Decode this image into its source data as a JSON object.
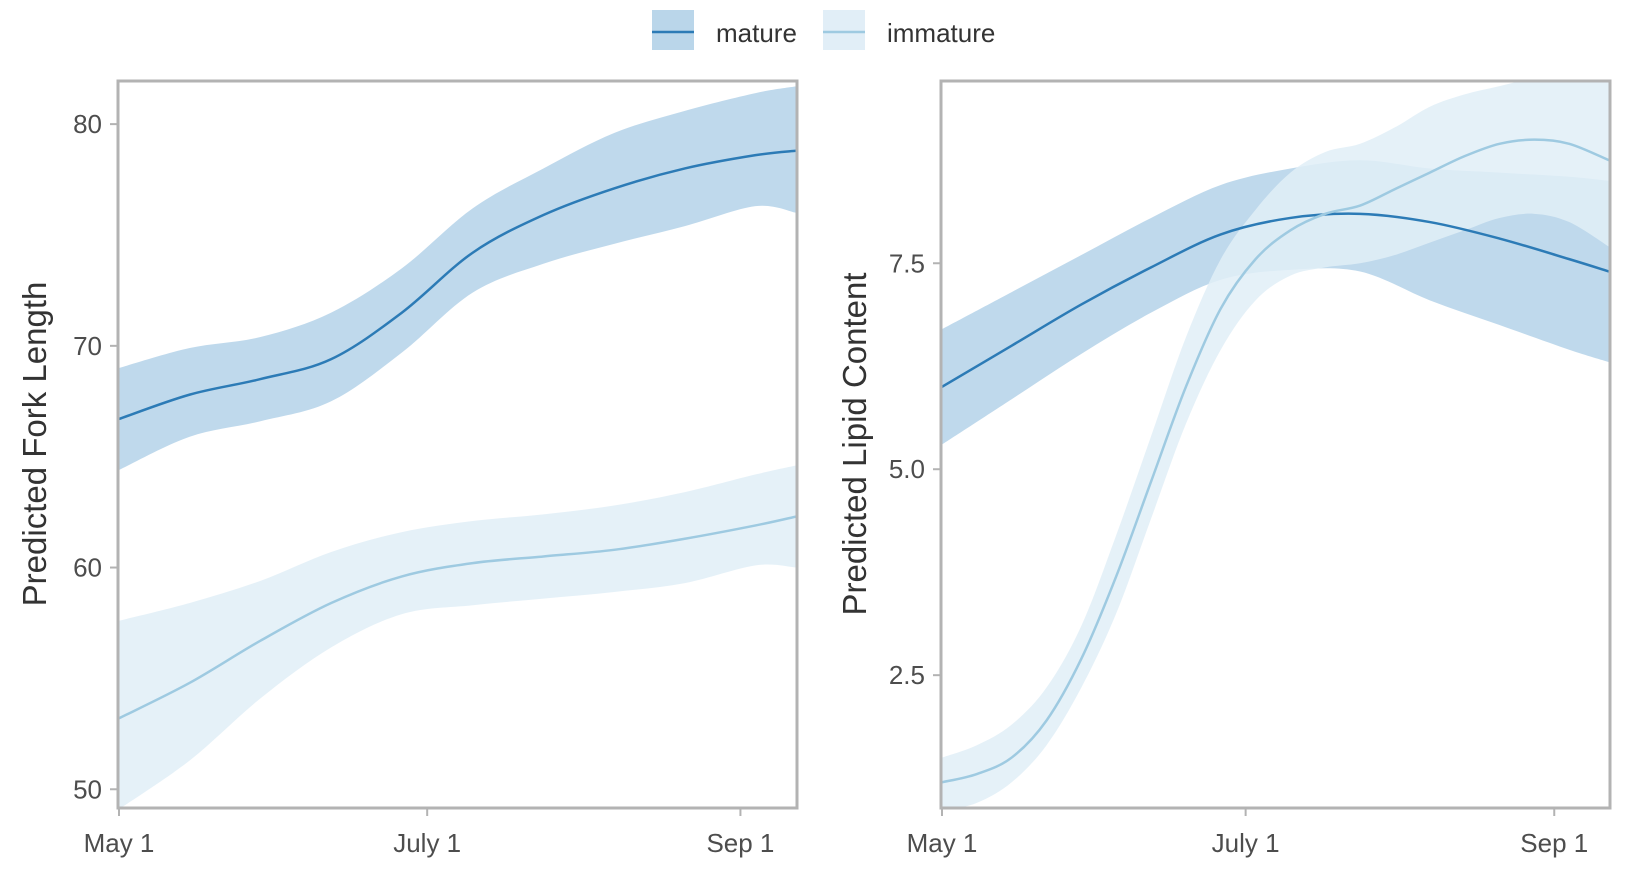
{
  "legend": {
    "position": "top-center",
    "items": [
      {
        "label": "mature",
        "line_color": "#2c7bb6",
        "band_color": "#bad6ea"
      },
      {
        "label": "immature",
        "line_color": "#9ecae1",
        "band_color": "#e1eef7"
      }
    ]
  },
  "colors": {
    "mature_line": "#2c7bb6",
    "mature_band": "#bad6ea",
    "immature_line": "#9ecae1",
    "immature_band": "#e1eef7",
    "panel_border": "#b3b3b3",
    "tick_text": "#4d4d4d",
    "axis_title": "#333333"
  },
  "chart_data": [
    {
      "type": "line",
      "title": "",
      "xlabel": "",
      "ylabel": "Predicted Fork Length",
      "x_axis": {
        "type": "date",
        "range": [
          "2019-05-01",
          "2019-09-12"
        ],
        "ticks": [
          "2019-05-01",
          "2019-07-01",
          "2019-09-01"
        ],
        "tick_labels": [
          "May 1",
          "July 1",
          "Sep 1"
        ]
      },
      "ylim": [
        49.2,
        81.9
      ],
      "y_ticks": [
        50,
        60,
        70,
        80
      ],
      "y_tick_labels": [
        "50",
        "60",
        "70",
        "80"
      ],
      "grid": false,
      "series": [
        {
          "name": "mature",
          "x": [
            "2019-05-01",
            "2019-05-15",
            "2019-05-29",
            "2019-06-12",
            "2019-06-26",
            "2019-07-10",
            "2019-07-24",
            "2019-08-07",
            "2019-08-21",
            "2019-09-04",
            "2019-09-12"
          ],
          "y": [
            66.7,
            67.8,
            68.5,
            69.4,
            71.5,
            74.2,
            75.9,
            77.1,
            78.0,
            78.6,
            78.8
          ],
          "lower": [
            64.4,
            65.9,
            66.6,
            67.5,
            69.7,
            72.4,
            73.7,
            74.6,
            75.4,
            76.3,
            76.0
          ],
          "upper": [
            69.0,
            69.9,
            70.4,
            71.5,
            73.5,
            76.2,
            78.0,
            79.6,
            80.6,
            81.4,
            81.7
          ]
        },
        {
          "name": "immature",
          "x": [
            "2019-05-01",
            "2019-05-15",
            "2019-05-29",
            "2019-06-12",
            "2019-06-26",
            "2019-07-10",
            "2019-07-24",
            "2019-08-07",
            "2019-08-21",
            "2019-09-04",
            "2019-09-12"
          ],
          "y": [
            53.2,
            54.8,
            56.7,
            58.4,
            59.6,
            60.2,
            60.5,
            60.8,
            61.3,
            61.9,
            62.3
          ],
          "lower": [
            49.1,
            51.3,
            54.1,
            56.4,
            57.9,
            58.3,
            58.6,
            58.9,
            59.3,
            60.1,
            60.0
          ],
          "upper": [
            57.6,
            58.4,
            59.4,
            60.7,
            61.6,
            62.1,
            62.4,
            62.8,
            63.4,
            64.2,
            64.6
          ]
        }
      ]
    },
    {
      "type": "line",
      "title": "",
      "xlabel": "",
      "ylabel": "Predicted Lipid Content",
      "x_axis": {
        "type": "date",
        "range": [
          "2019-05-01",
          "2019-09-12"
        ],
        "ticks": [
          "2019-05-01",
          "2019-07-01",
          "2019-09-01"
        ],
        "tick_labels": [
          "May 1",
          "July 1",
          "Sep 1"
        ]
      },
      "ylim": [
        0.9,
        9.7
      ],
      "y_ticks": [
        2.5,
        5.0,
        7.5
      ],
      "y_tick_labels": [
        "2.5",
        "5.0",
        "7.5"
      ],
      "grid": false,
      "series": [
        {
          "name": "mature",
          "x": [
            "2019-05-01",
            "2019-05-15",
            "2019-05-29",
            "2019-06-12",
            "2019-06-26",
            "2019-07-10",
            "2019-07-24",
            "2019-08-07",
            "2019-08-21",
            "2019-09-04",
            "2019-09-12"
          ],
          "y": [
            6.0,
            6.5,
            7.0,
            7.45,
            7.85,
            8.05,
            8.1,
            8.0,
            7.8,
            7.55,
            7.4
          ],
          "lower": [
            5.3,
            5.85,
            6.4,
            6.9,
            7.3,
            7.42,
            7.4,
            7.05,
            6.75,
            6.45,
            6.3
          ],
          "upper": [
            6.7,
            7.15,
            7.6,
            8.05,
            8.45,
            8.65,
            8.75,
            8.65,
            8.6,
            8.55,
            8.5
          ]
        },
        {
          "name": "immature",
          "x": [
            "2019-05-01",
            "2019-05-08",
            "2019-05-15",
            "2019-05-22",
            "2019-05-29",
            "2019-06-05",
            "2019-06-12",
            "2019-06-19",
            "2019-06-26",
            "2019-07-03",
            "2019-07-10",
            "2019-07-17",
            "2019-07-24",
            "2019-07-31",
            "2019-08-07",
            "2019-08-14",
            "2019-08-21",
            "2019-08-28",
            "2019-09-04",
            "2019-09-12"
          ],
          "y": [
            1.2,
            1.3,
            1.5,
            1.95,
            2.7,
            3.7,
            4.85,
            6.0,
            6.95,
            7.55,
            7.9,
            8.1,
            8.2,
            8.4,
            8.6,
            8.8,
            8.95,
            9.0,
            8.95,
            8.75
          ],
          "lower": [
            0.85,
            0.95,
            1.2,
            1.65,
            2.35,
            3.25,
            4.4,
            5.55,
            6.45,
            7.05,
            7.35,
            7.45,
            7.5,
            7.6,
            7.75,
            7.9,
            8.05,
            8.1,
            8.0,
            7.7
          ],
          "upper": [
            1.5,
            1.65,
            1.9,
            2.35,
            3.1,
            4.2,
            5.4,
            6.6,
            7.55,
            8.15,
            8.6,
            8.85,
            8.95,
            9.15,
            9.4,
            9.55,
            9.65,
            9.75,
            9.8,
            9.75
          ]
        }
      ]
    }
  ]
}
